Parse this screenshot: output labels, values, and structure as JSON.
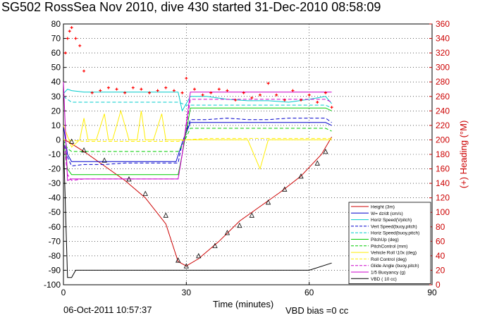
{
  "title": "SG502 RossSea Nov 2010, dive 430 started 31-Dec-2010 08:58:09",
  "footer": {
    "date": "06-Oct-2011 10:57:37",
    "vbd_bias": "VBD bias =0 cc"
  },
  "chart_data": {
    "type": "line",
    "xlabel": "Time (minutes)",
    "y2label": "(+) Heading (°M)",
    "xlim": [
      0,
      90
    ],
    "ylim": [
      -100,
      80
    ],
    "y2lim": [
      0,
      360
    ],
    "xticks": [
      "0",
      "30",
      "60",
      "90"
    ],
    "yticks": [
      "80",
      "70",
      "60",
      "50",
      "40",
      "30",
      "20",
      "10",
      "0",
      "-10",
      "-20",
      "-30",
      "-40",
      "-50",
      "-60",
      "-70",
      "-80",
      "-90",
      "-100"
    ],
    "y2ticks": [
      "360",
      "340",
      "320",
      "300",
      "280",
      "260",
      "240",
      "220",
      "200",
      "180",
      "160",
      "140",
      "120",
      "100",
      "80",
      "60",
      "40",
      "20",
      "0"
    ],
    "grid": true,
    "legend_position": "bottom-right",
    "colors": {
      "left_axis": "#000000",
      "right_axis": "#cc0000"
    },
    "series": [
      {
        "name": "Height (3m)",
        "color": "#cc0000",
        "style": "solid",
        "x": [
          0,
          1,
          5,
          10,
          15,
          20,
          25,
          28,
          30,
          33,
          38,
          43,
          48,
          53,
          58,
          63,
          65.5
        ],
        "y": [
          0,
          -1,
          -8,
          -18,
          -28,
          -40,
          -58,
          -84,
          -87,
          -82,
          -70,
          -56,
          -46,
          -36,
          -25,
          -10,
          2
        ]
      },
      {
        "name": "W= dz/dt (cm/s)",
        "color": "#0000cc",
        "style": "solid",
        "x": [
          0,
          1,
          2,
          5,
          10,
          15,
          20,
          25,
          27.5,
          29,
          31,
          35,
          40,
          45,
          50,
          55,
          60,
          64,
          65.5
        ],
        "y": [
          10,
          -10,
          -15,
          -15,
          -15,
          -15,
          -15,
          -15,
          -15,
          -2,
          12,
          12,
          12,
          12,
          12,
          12,
          12,
          12,
          10
        ]
      },
      {
        "name": "Horiz Speed(Vpitch)",
        "color": "#00cccc",
        "style": "solid",
        "x": [
          0,
          1,
          2,
          5,
          10,
          15,
          20,
          25,
          28,
          29,
          31,
          35,
          40,
          45,
          50,
          55,
          60,
          64,
          65.5
        ],
        "y": [
          32,
          35,
          34,
          33,
          33,
          33,
          33,
          33,
          33,
          20,
          30,
          30,
          28,
          27,
          27,
          26,
          28,
          30,
          25
        ]
      },
      {
        "name": "Vert Speed(buoy,pitch)",
        "color": "#0000cc",
        "style": "dashed",
        "x": [
          0,
          1,
          2,
          5,
          10,
          15,
          20,
          25,
          28,
          29,
          31,
          35,
          40,
          45,
          50,
          55,
          60,
          64,
          65.5
        ],
        "y": [
          0,
          -12,
          -18,
          -17,
          -17,
          -16,
          -16,
          -16,
          -16,
          -2,
          14,
          14,
          15,
          14,
          14,
          15,
          15,
          15,
          12
        ]
      },
      {
        "name": "Horiz Speed(buoy,pitch)",
        "color": "#00cccc",
        "style": "dashed",
        "x": [
          0,
          2,
          5,
          10,
          15,
          20,
          25,
          28,
          30,
          35,
          40,
          45,
          50,
          55,
          60,
          64,
          65.5
        ],
        "y": [
          30,
          26,
          26,
          26,
          26,
          26,
          26,
          26,
          24,
          24,
          24,
          24,
          24,
          24,
          24,
          24,
          22
        ]
      },
      {
        "name": "PitchUp (deg)",
        "color": "#00cc00",
        "style": "solid",
        "x": [
          0,
          1,
          2,
          5,
          10,
          15,
          20,
          25,
          28,
          29,
          31,
          35,
          40,
          45,
          50,
          55,
          60,
          64,
          65.5
        ],
        "y": [
          0,
          -20,
          -24,
          -24,
          -24,
          -24,
          -24,
          -24,
          -24,
          -10,
          22,
          22,
          22,
          22,
          22,
          22,
          22,
          22,
          20
        ]
      },
      {
        "name": "PitchControl (mm)",
        "color": "#00cc00",
        "style": "dashed",
        "x": [
          0,
          1,
          2,
          5,
          10,
          15,
          20,
          25,
          28,
          29,
          31,
          35,
          40,
          45,
          50,
          55,
          60,
          64,
          65.5
        ],
        "y": [
          0,
          -6,
          -8,
          -8,
          -8,
          -8,
          -8,
          -8,
          -8,
          -4,
          8,
          8,
          8,
          8,
          8,
          8,
          8,
          8,
          6
        ]
      },
      {
        "name": "Vehicle Roll \\10x (deg)",
        "color": "#ffee00",
        "style": "solid",
        "x": [
          0,
          2,
          4,
          5,
          6,
          8,
          10,
          11,
          12,
          14,
          16,
          18,
          19,
          20,
          22,
          24,
          25,
          26,
          28,
          30,
          35,
          40,
          45,
          48,
          50,
          55,
          60,
          64,
          65.5
        ],
        "y": [
          10,
          -5,
          0,
          15,
          0,
          0,
          18,
          0,
          0,
          20,
          0,
          0,
          20,
          0,
          0,
          18,
          0,
          0,
          0,
          0,
          0,
          0,
          0,
          -20,
          0,
          0,
          0,
          0,
          0
        ]
      },
      {
        "name": "Roll Control (deg)",
        "color": "#ffee00",
        "style": "dashed",
        "x": [
          0,
          5,
          10,
          15,
          20,
          25,
          28,
          30,
          35,
          40,
          45,
          50,
          55,
          60,
          65.5
        ],
        "y": [
          0,
          -1,
          -1,
          -1,
          -1,
          -1,
          -1,
          0,
          1,
          1,
          1,
          1,
          1,
          1,
          1
        ]
      },
      {
        "name": "Glide Angle (buoy,pitch)",
        "color": "#cc00cc",
        "style": "dashed",
        "x": [
          0,
          1,
          2,
          5,
          10,
          15,
          20,
          25,
          28,
          29,
          31,
          35,
          40,
          45,
          50,
          55,
          60,
          64,
          65.5
        ],
        "y": [
          0,
          -24,
          -28,
          -27,
          -27,
          -27,
          -27,
          -27,
          -27,
          -10,
          28,
          28,
          28,
          28,
          28,
          28,
          28,
          28,
          26
        ]
      },
      {
        "name": "1/5 Buoyancy (g)",
        "color": "#cc00cc",
        "style": "solid",
        "x": [
          0,
          1,
          2,
          5,
          10,
          15,
          20,
          25,
          28,
          29,
          31,
          35,
          40,
          45,
          50,
          55,
          60,
          64,
          65.5
        ],
        "y": [
          40,
          -28,
          -27,
          -27,
          -27,
          -27,
          -27,
          -27,
          -27,
          -10,
          33,
          33,
          33,
          33,
          33,
          33,
          33,
          33,
          33
        ]
      },
      {
        "name": "VBD ( 10 cc)",
        "color": "#000000",
        "style": "solid",
        "x": [
          0,
          1,
          2,
          3,
          60,
          65.5
        ],
        "y": [
          0,
          -95,
          -95,
          -90,
          -90,
          -85
        ]
      },
      {
        "name": "Heading",
        "axis": "right",
        "color": "#ff0000",
        "style": "markers",
        "x": [
          0.5,
          1,
          1.5,
          2,
          3,
          4,
          5,
          7,
          9,
          11,
          13,
          15,
          17,
          19,
          21,
          23,
          25,
          27,
          29,
          30,
          32,
          34,
          36,
          38,
          40,
          42,
          44,
          46,
          48,
          50,
          52,
          54,
          56,
          58,
          60,
          62,
          64,
          65.5
        ],
        "y": [
          320,
          340,
          350,
          355,
          340,
          330,
          295,
          265,
          268,
          272,
          270,
          265,
          272,
          270,
          265,
          268,
          272,
          268,
          265,
          285,
          270,
          262,
          265,
          270,
          268,
          255,
          265,
          258,
          262,
          278,
          262,
          255,
          268,
          255,
          262,
          252,
          265,
          245
        ]
      }
    ],
    "annotation_markers": {
      "x": [
        2,
        5,
        10,
        16,
        20,
        25,
        28,
        30,
        33,
        37,
        40,
        43,
        46,
        50,
        54,
        58,
        62,
        64
      ],
      "y": [
        -1,
        -7,
        -14,
        -27,
        -37,
        -52,
        -83,
        -87,
        -80,
        -73,
        -64,
        -59,
        -52,
        -43,
        -34,
        -25,
        -16,
        -8
      ]
    }
  }
}
